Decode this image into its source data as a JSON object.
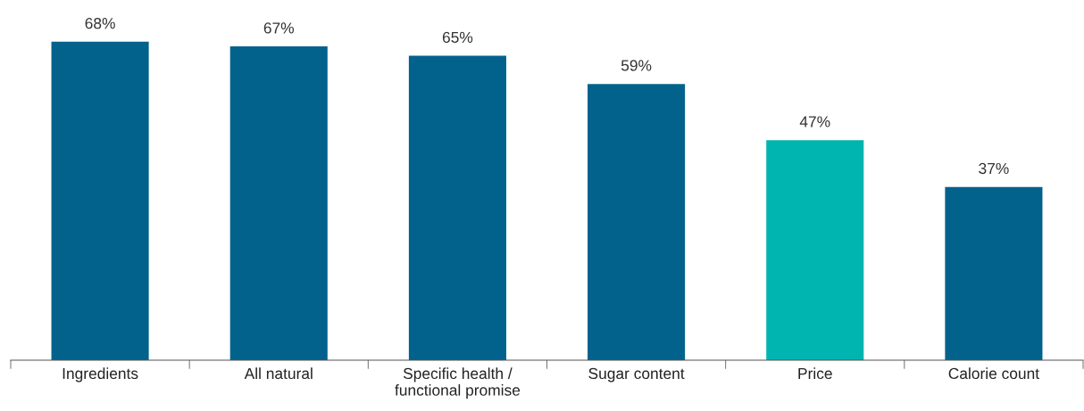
{
  "chart_data": {
    "type": "bar",
    "categories": [
      "Ingredients",
      "All natural",
      "Specific health /\nfunctional promise",
      "Sugar content",
      "Price",
      "Calorie count"
    ],
    "values": [
      68,
      67,
      65,
      59,
      47,
      37
    ],
    "colors": [
      "#03628c",
      "#03628c",
      "#03628c",
      "#03628c",
      "#00b5b0",
      "#03628c"
    ],
    "value_labels": [
      "68%",
      "67%",
      "65%",
      "59%",
      "47%",
      "37%"
    ],
    "grid": false,
    "legend": false
  }
}
